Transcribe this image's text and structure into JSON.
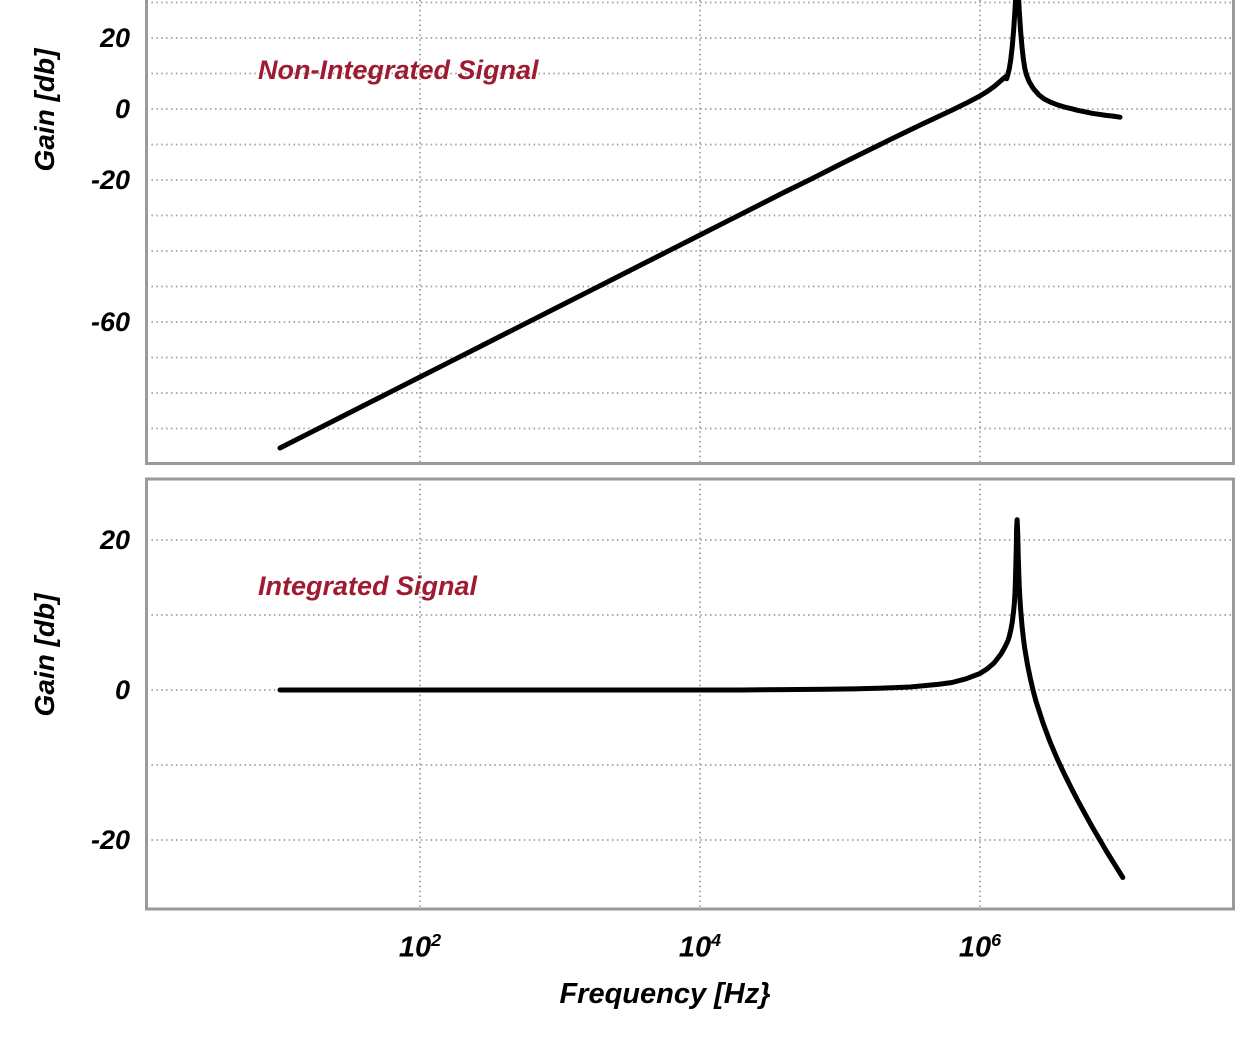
{
  "page": {
    "background": "#ffffff"
  },
  "colors": {
    "curve": "#000000",
    "grid": "#9e9e9e",
    "border": "#9a9a9a",
    "annotation": "#9e1b32",
    "text": "#000000"
  },
  "axis": {
    "x_label": "Frequency [Hz}",
    "y_label": "Gain [db]",
    "xticks": [
      {
        "base": "10",
        "exp": "2",
        "log10": 2
      },
      {
        "base": "10",
        "exp": "4",
        "log10": 4
      },
      {
        "base": "10",
        "exp": "6",
        "log10": 6
      }
    ]
  },
  "chart_data": [
    {
      "type": "line",
      "annotation": "Non-Integrated Signal",
      "xlabel": "Frequency [Hz}",
      "ylabel": "Gain [db]",
      "x_scale": "log10",
      "xlim_log10": [
        0.036,
        7.82
      ],
      "ylim": [
        -100,
        31
      ],
      "grid": true,
      "yticks": [
        {
          "value": 20,
          "label": "20"
        },
        {
          "value": 0,
          "label": "0"
        },
        {
          "value": -20,
          "label": "-20"
        },
        {
          "value": -60,
          "label": "-60"
        }
      ],
      "ygrid": [
        30,
        20,
        10,
        0,
        -10,
        -20,
        -30,
        -40,
        -50,
        -60,
        -70,
        -80,
        -90
      ],
      "xgrid_log10": [
        2,
        4,
        6
      ],
      "series": [
        {
          "name": "Non-Integrated Signal",
          "points_logf_db": [
            [
              1.0,
              -95.5
            ],
            [
              1.2,
              -91.5
            ],
            [
              1.4,
              -87.5
            ],
            [
              1.6,
              -83.5
            ],
            [
              1.8,
              -79.5
            ],
            [
              2.0,
              -75.5
            ],
            [
              2.2,
              -71.5
            ],
            [
              2.4,
              -67.5
            ],
            [
              2.6,
              -63.5
            ],
            [
              2.8,
              -59.5
            ],
            [
              3.0,
              -55.5
            ],
            [
              3.2,
              -51.5
            ],
            [
              3.4,
              -47.5
            ],
            [
              3.6,
              -43.5
            ],
            [
              3.8,
              -39.5
            ],
            [
              4.0,
              -35.5
            ],
            [
              4.2,
              -31.5
            ],
            [
              4.4,
              -27.5
            ],
            [
              4.6,
              -23.5
            ],
            [
              4.8,
              -19.6
            ],
            [
              5.0,
              -15.6
            ],
            [
              5.2,
              -11.7
            ],
            [
              5.4,
              -7.8
            ],
            [
              5.6,
              -4.0
            ],
            [
              5.8,
              -0.3
            ],
            [
              5.9,
              1.6
            ],
            [
              6.0,
              3.7
            ],
            [
              6.05,
              4.9
            ],
            [
              6.1,
              6.3
            ],
            [
              6.15,
              8.0
            ],
            [
              6.18,
              9.0
            ],
            [
              6.19,
              8.5
            ],
            [
              6.2,
              9.8
            ],
            [
              6.21,
              11.5
            ],
            [
              6.22,
              14.0
            ],
            [
              6.23,
              17.5
            ],
            [
              6.24,
              22.0
            ],
            [
              6.25,
              28.0
            ],
            [
              6.255,
              32.0
            ],
            [
              6.26,
              36.0
            ],
            [
              6.265,
              38.0
            ],
            [
              6.27,
              36.0
            ],
            [
              6.275,
              32.0
            ],
            [
              6.28,
              28.0
            ],
            [
              6.29,
              22.0
            ],
            [
              6.3,
              17.5
            ],
            [
              6.31,
              14.0
            ],
            [
              6.32,
              11.5
            ],
            [
              6.33,
              9.8
            ],
            [
              6.35,
              7.8
            ],
            [
              6.38,
              5.8
            ],
            [
              6.42,
              4.0
            ],
            [
              6.46,
              2.8
            ],
            [
              6.5,
              2.0
            ],
            [
              6.55,
              1.2
            ],
            [
              6.6,
              0.6
            ],
            [
              6.65,
              0.1
            ],
            [
              6.7,
              -0.4
            ],
            [
              6.75,
              -0.8
            ],
            [
              6.8,
              -1.2
            ],
            [
              6.85,
              -1.5
            ],
            [
              6.9,
              -1.8
            ],
            [
              6.95,
              -2.0
            ],
            [
              7.0,
              -2.3
            ]
          ]
        }
      ]
    },
    {
      "type": "line",
      "annotation": "Integrated Signal",
      "xlabel": "Frequency [Hz}",
      "ylabel": "Gain [db]",
      "x_scale": "log10",
      "xlim_log10": [
        0.036,
        7.82
      ],
      "ylim": [
        -29,
        28
      ],
      "grid": true,
      "yticks": [
        {
          "value": 20,
          "label": "20"
        },
        {
          "value": 0,
          "label": "0"
        },
        {
          "value": -20,
          "label": "-20"
        }
      ],
      "ygrid": [
        20,
        10,
        0,
        -10,
        -20
      ],
      "xgrid_log10": [
        2,
        4,
        6
      ],
      "series": [
        {
          "name": "Integrated Signal",
          "points_logf_db": [
            [
              1.0,
              0
            ],
            [
              1.5,
              0
            ],
            [
              2.0,
              0
            ],
            [
              2.5,
              0
            ],
            [
              3.0,
              0
            ],
            [
              3.5,
              0
            ],
            [
              4.0,
              0
            ],
            [
              4.3,
              0
            ],
            [
              4.6,
              0.05
            ],
            [
              4.9,
              0.1
            ],
            [
              5.1,
              0.15
            ],
            [
              5.3,
              0.25
            ],
            [
              5.5,
              0.4
            ],
            [
              5.7,
              0.75
            ],
            [
              5.8,
              1.0
            ],
            [
              5.9,
              1.5
            ],
            [
              6.0,
              2.2
            ],
            [
              6.05,
              2.8
            ],
            [
              6.1,
              3.6
            ],
            [
              6.15,
              4.8
            ],
            [
              6.18,
              5.8
            ],
            [
              6.2,
              6.6
            ],
            [
              6.21,
              7.2
            ],
            [
              6.22,
              8.0
            ],
            [
              6.23,
              9.0
            ],
            [
              6.24,
              10.5
            ],
            [
              6.245,
              11.5
            ],
            [
              6.25,
              13.0
            ],
            [
              6.253,
              14.5
            ],
            [
              6.256,
              16.5
            ],
            [
              6.259,
              19.0
            ],
            [
              6.261,
              21.0
            ],
            [
              6.263,
              22.0
            ],
            [
              6.265,
              22.7
            ],
            [
              6.267,
              22.0
            ],
            [
              6.27,
              20.5
            ],
            [
              6.273,
              18.0
            ],
            [
              6.277,
              15.5
            ],
            [
              6.28,
              14.0
            ],
            [
              6.285,
              12.2
            ],
            [
              6.29,
              10.8
            ],
            [
              6.3,
              8.6
            ],
            [
              6.31,
              6.9
            ],
            [
              6.32,
              5.5
            ],
            [
              6.34,
              3.3
            ],
            [
              6.36,
              1.5
            ],
            [
              6.38,
              -0.1
            ],
            [
              6.4,
              -1.5
            ],
            [
              6.45,
              -4.4
            ],
            [
              6.5,
              -6.9
            ],
            [
              6.55,
              -9.1
            ],
            [
              6.6,
              -11.1
            ],
            [
              6.65,
              -13.0
            ],
            [
              6.7,
              -14.8
            ],
            [
              6.75,
              -16.5
            ],
            [
              6.8,
              -18.2
            ],
            [
              6.85,
              -19.8
            ],
            [
              6.9,
              -21.4
            ],
            [
              6.95,
              -22.9
            ],
            [
              7.0,
              -24.4
            ],
            [
              7.02,
              -25.0
            ]
          ]
        }
      ]
    }
  ]
}
